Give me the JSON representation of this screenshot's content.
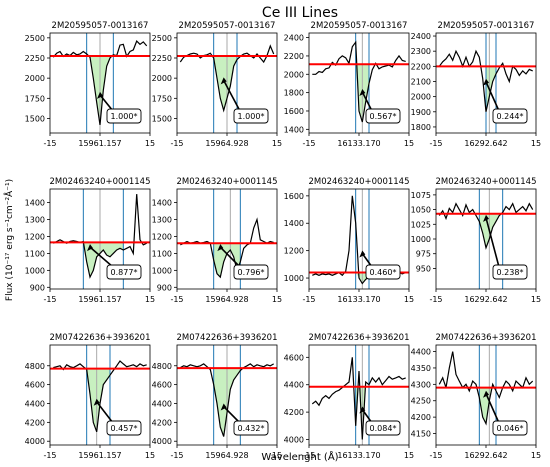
{
  "figure": {
    "title": "Ce III Lines",
    "xlabel": "Wavelenght (Å)",
    "ylabel": "Flux (10⁻¹⁷ erg s⁻¹cm⁻²Å⁻¹)"
  },
  "colors": {
    "spectrum": "#000000",
    "continuum": "#ff0000",
    "fill": "#c8f0c0",
    "blue_lines": "#1f77b4",
    "center_line": "#aaaaaa"
  },
  "chart_data": [
    {
      "type": "line",
      "title": "2M20595057-0013167",
      "xticklabels": [
        "-15",
        "15961.157",
        "15"
      ],
      "xlim": [
        -15,
        15
      ],
      "ylim": [
        1320,
        2560
      ],
      "yticks": [
        1500,
        1750,
        2000,
        2250,
        2500
      ],
      "continuum": 2275,
      "blue_lines": [
        -4,
        4
      ],
      "center": 0,
      "label": "1.000*",
      "x": [
        -14,
        -13,
        -12,
        -11,
        -10,
        -9,
        -8,
        -7,
        -6,
        -5,
        -4,
        -3,
        -2,
        -1,
        0,
        1,
        2,
        3,
        4,
        5,
        6,
        7,
        8,
        9,
        10,
        11,
        12,
        13,
        14
      ],
      "y": [
        2260,
        2310,
        2330,
        2270,
        2300,
        2280,
        2320,
        2290,
        2300,
        2330,
        2300,
        2260,
        2000,
        1700,
        1420,
        1850,
        2150,
        2250,
        2290,
        2280,
        2410,
        2420,
        2270,
        2330,
        2350,
        2460,
        2420,
        2450,
        2400
      ]
    },
    {
      "type": "line",
      "title": "2M20595057-0013167",
      "xticklabels": [
        "-15",
        "15964.928",
        "15"
      ],
      "xlim": [
        -15,
        15
      ],
      "ylim": [
        1320,
        2560
      ],
      "yticks": [
        1500,
        1750,
        2000,
        2250,
        2500
      ],
      "continuum": 2275,
      "blue_lines": [
        -4,
        3
      ],
      "center": 0,
      "label": "1.000*",
      "x": [
        -14,
        -13,
        -12,
        -11,
        -10,
        -9,
        -8,
        -7,
        -6,
        -5,
        -4,
        -3,
        -2,
        -1,
        0,
        1,
        2,
        3,
        4,
        5,
        6,
        7,
        8,
        9,
        10,
        11,
        12,
        13,
        14
      ],
      "y": [
        2200,
        2260,
        2280,
        2300,
        2310,
        2300,
        2250,
        2280,
        2290,
        2310,
        2250,
        2000,
        1750,
        1600,
        1750,
        1900,
        2150,
        2230,
        2270,
        2300,
        2310,
        2280,
        2250,
        2300,
        2250,
        2200,
        2280,
        2400,
        2300
      ]
    },
    {
      "type": "line",
      "title": "2M20595057-0013167",
      "xticklabels": [
        "-15",
        "16133.170",
        "15"
      ],
      "xlim": [
        -15,
        15
      ],
      "ylim": [
        1360,
        2450
      ],
      "yticks": [
        1400,
        1600,
        1800,
        2000,
        2200,
        2400
      ],
      "continuum": 2110,
      "blue_lines": [
        -1,
        3
      ],
      "center": 1,
      "label": "0.567*",
      "x": [
        -14,
        -13,
        -12,
        -11,
        -10,
        -9,
        -8,
        -7,
        -6,
        -5,
        -4,
        -3,
        -2,
        -1,
        0,
        1,
        2,
        3,
        4,
        5,
        6,
        7,
        8,
        9,
        10,
        11,
        12,
        13,
        14
      ],
      "y": [
        2000,
        2000,
        2030,
        2020,
        2060,
        2070,
        2130,
        2100,
        2170,
        2200,
        2180,
        2120,
        2300,
        2350,
        1600,
        1480,
        1700,
        1900,
        2050,
        2120,
        2060,
        2080,
        2090,
        2100,
        2080,
        2150,
        2200,
        2150,
        2140
      ]
    },
    {
      "type": "line",
      "title": "2M20595057-0013167",
      "xticklabels": [
        "-15",
        "16292.642",
        "15"
      ],
      "xlim": [
        -15,
        15
      ],
      "ylim": [
        1760,
        2420
      ],
      "yticks": [
        1800,
        1900,
        2000,
        2100,
        2200,
        2300,
        2400
      ],
      "continuum": 2200,
      "blue_lines": [
        0,
        3
      ],
      "center": 1,
      "label": "0.244*",
      "x": [
        -14,
        -13,
        -12,
        -11,
        -10,
        -9,
        -8,
        -7,
        -6,
        -5,
        -4,
        -3,
        -2,
        -1,
        0,
        1,
        2,
        3,
        4,
        5,
        6,
        7,
        8,
        9,
        10,
        11,
        12,
        13,
        14
      ],
      "y": [
        2200,
        2230,
        2250,
        2280,
        2240,
        2300,
        2260,
        2200,
        2260,
        2200,
        2230,
        2300,
        2260,
        2120,
        1900,
        2000,
        2100,
        2150,
        2190,
        2220,
        2150,
        2100,
        2200,
        2180,
        2140,
        2170,
        2150,
        2180,
        2170
      ]
    },
    {
      "type": "line",
      "title": "2M02463240+0001145",
      "xticklabels": [
        "-15",
        "15961.157",
        "15"
      ],
      "xlim": [
        -15,
        15
      ],
      "ylim": [
        890,
        1480
      ],
      "yticks": [
        900,
        1000,
        1100,
        1200,
        1300,
        1400
      ],
      "continuum": 1165,
      "blue_lines": [
        -5,
        7
      ],
      "center": 0,
      "label": "0.877*",
      "x": [
        -14,
        -13,
        -12,
        -11,
        -10,
        -9,
        -8,
        -7,
        -6,
        -5,
        -4,
        -3,
        -2,
        -1,
        0,
        1,
        2,
        3,
        4,
        5,
        6,
        7,
        8,
        9,
        10,
        11,
        12,
        13,
        14
      ],
      "y": [
        1160,
        1170,
        1180,
        1170,
        1160,
        1170,
        1175,
        1170,
        1165,
        1170,
        1050,
        960,
        1000,
        1080,
        1100,
        1120,
        1090,
        1080,
        1100,
        1120,
        1130,
        1120,
        1130,
        1140,
        1100,
        1450,
        1180,
        1150,
        1160
      ]
    },
    {
      "type": "line",
      "title": "2M02463240+0001145",
      "xticklabels": [
        "-15",
        "15964.928",
        "15"
      ],
      "xlim": [
        -15,
        15
      ],
      "ylim": [
        890,
        1480
      ],
      "yticks": [
        900,
        1000,
        1100,
        1200,
        1300,
        1400
      ],
      "continuum": 1160,
      "blue_lines": [
        -4,
        4
      ],
      "center": 1,
      "label": "0.796*",
      "x": [
        -14,
        -13,
        -12,
        -11,
        -10,
        -9,
        -8,
        -7,
        -6,
        -5,
        -4,
        -3,
        -2,
        -1,
        0,
        1,
        2,
        3,
        4,
        5,
        6,
        7,
        8,
        9,
        10,
        11,
        12,
        13,
        14
      ],
      "y": [
        1150,
        1160,
        1170,
        1160,
        1165,
        1170,
        1160,
        1165,
        1170,
        1160,
        1060,
        980,
        960,
        1050,
        1100,
        1120,
        1080,
        1000,
        1050,
        1130,
        1150,
        1160,
        1250,
        1300,
        1180,
        1170,
        1160,
        1170,
        1165
      ]
    },
    {
      "type": "line",
      "title": "2M02463240+0001145",
      "xticklabels": [
        "-15",
        "16133.170",
        "15"
      ],
      "xlim": [
        -15,
        15
      ],
      "ylim": [
        920,
        1650
      ],
      "yticks": [
        1000,
        1200,
        1400,
        1600
      ],
      "continuum": 1040,
      "blue_lines": [
        -1,
        3
      ],
      "center": 1,
      "label": "0.460*",
      "x": [
        -14,
        -13,
        -12,
        -11,
        -10,
        -9,
        -8,
        -7,
        -6,
        -5,
        -4,
        -3,
        -2,
        -1,
        0,
        1,
        2,
        3,
        4,
        5,
        6,
        7,
        8,
        9,
        10,
        11,
        12,
        13,
        14
      ],
      "y": [
        1020,
        1030,
        1020,
        1030,
        1025,
        1030,
        1020,
        1030,
        1040,
        1020,
        1050,
        1200,
        1600,
        1400,
        1000,
        960,
        990,
        1010,
        1020,
        1030,
        1040,
        1030,
        1040,
        1030,
        1040,
        1035,
        1040,
        1030,
        1040
      ]
    },
    {
      "type": "line",
      "title": "2M02463240+0001145",
      "xticklabels": [
        "-15",
        "16292.642",
        "15"
      ],
      "xlim": [
        -15,
        15
      ],
      "ylim": [
        915,
        1085
      ],
      "yticks": [
        950,
        975,
        1000,
        1025,
        1050,
        1075
      ],
      "continuum": 1043,
      "blue_lines": [
        -2,
        5
      ],
      "center": 1,
      "label": "0.238*",
      "x": [
        -14,
        -13,
        -12,
        -11,
        -10,
        -9,
        -8,
        -7,
        -6,
        -5,
        -4,
        -3,
        -2,
        -1,
        0,
        1,
        2,
        3,
        4,
        5,
        6,
        7,
        8,
        9,
        10,
        11,
        12,
        13,
        14
      ],
      "y": [
        1040,
        1048,
        1035,
        1052,
        1045,
        1060,
        1050,
        1040,
        1058,
        1045,
        1050,
        1040,
        1030,
        1010,
        985,
        1000,
        1020,
        1030,
        1040,
        1045,
        1055,
        1050,
        1060,
        1045,
        1050,
        1055,
        1048,
        1060,
        1050
      ]
    },
    {
      "type": "line",
      "title": "2M07422636+3936201",
      "xticklabels": [
        "-15",
        "15961.157",
        "15"
      ],
      "xlim": [
        -15,
        15
      ],
      "ylim": [
        3960,
        5020
      ],
      "yticks": [
        4000,
        4200,
        4400,
        4600,
        4800
      ],
      "continuum": 4770,
      "blue_lines": [
        -4,
        3
      ],
      "center": -1,
      "label": "0.457*",
      "x": [
        -14,
        -13,
        -12,
        -11,
        -10,
        -9,
        -8,
        -7,
        -6,
        -5,
        -4,
        -3,
        -2,
        -1,
        0,
        1,
        2,
        3,
        4,
        5,
        6,
        7,
        8,
        9,
        10,
        11,
        12,
        13,
        14
      ],
      "y": [
        4780,
        4790,
        4800,
        4760,
        4810,
        4790,
        4780,
        4800,
        4820,
        4790,
        4760,
        4500,
        4200,
        4100,
        4400,
        4600,
        4650,
        4700,
        4750,
        4800,
        4850,
        4820,
        4790,
        4800,
        4810,
        4790,
        4820,
        4800,
        4810
      ]
    },
    {
      "type": "line",
      "title": "2M07422636+3936201",
      "xticklabels": [
        "-15",
        "15964.928",
        "15"
      ],
      "xlim": [
        -15,
        15
      ],
      "ylim": [
        3960,
        5020
      ],
      "yticks": [
        4000,
        4200,
        4400,
        4600,
        4800
      ],
      "continuum": 4775,
      "blue_lines": [
        -4,
        4
      ],
      "center": 0,
      "label": "0.432*",
      "x": [
        -14,
        -13,
        -12,
        -11,
        -10,
        -9,
        -8,
        -7,
        -6,
        -5,
        -4,
        -3,
        -2,
        -1,
        0,
        1,
        2,
        3,
        4,
        5,
        6,
        7,
        8,
        9,
        10,
        11,
        12,
        13,
        14
      ],
      "y": [
        4780,
        4800,
        4790,
        4810,
        4800,
        4790,
        4800,
        4820,
        4790,
        4760,
        4600,
        4400,
        4150,
        4050,
        4300,
        4550,
        4650,
        4700,
        4750,
        4780,
        4800,
        4820,
        4790,
        4810,
        4800,
        4790,
        4810,
        4800,
        4820
      ]
    },
    {
      "type": "line",
      "title": "2M07422636+3936201",
      "xticklabels": [
        "-15",
        "16133.170",
        "15"
      ],
      "xlim": [
        -15,
        15
      ],
      "ylim": [
        3960,
        4690
      ],
      "yticks": [
        4000,
        4200,
        4400,
        4600
      ],
      "continuum": 4385,
      "blue_lines": [
        -1,
        3
      ],
      "center": 1,
      "label": "0.084*",
      "x": [
        -14,
        -13,
        -12,
        -11,
        -10,
        -9,
        -8,
        -7,
        -6,
        -5,
        -4,
        -3,
        -2,
        -1,
        0,
        1,
        2,
        3,
        4,
        5,
        6,
        7,
        8,
        9,
        10,
        11,
        12,
        13,
        14
      ],
      "y": [
        4260,
        4280,
        4250,
        4300,
        4320,
        4300,
        4330,
        4350,
        4360,
        4380,
        4400,
        4420,
        4600,
        4100,
        4500,
        4000,
        4420,
        4400,
        4450,
        4420,
        4450,
        4400,
        4430,
        4460,
        4440,
        4450,
        4460,
        4440,
        4450
      ]
    },
    {
      "type": "line",
      "title": "2M07422636+3936201",
      "xticklabels": [
        "-15",
        "16292.642",
        "15"
      ],
      "xlim": [
        -15,
        15
      ],
      "ylim": [
        4115,
        4420
      ],
      "yticks": [
        4150,
        4200,
        4250,
        4300,
        4350,
        4400
      ],
      "continuum": 4290,
      "blue_lines": [
        -2,
        3
      ],
      "center": 1,
      "label": "0.046*",
      "x": [
        -14,
        -13,
        -12,
        -11,
        -10,
        -9,
        -8,
        -7,
        -6,
        -5,
        -4,
        -3,
        -2,
        -1,
        0,
        1,
        2,
        3,
        4,
        5,
        6,
        7,
        8,
        9,
        10,
        11,
        12,
        13,
        14
      ],
      "y": [
        4300,
        4320,
        4290,
        4350,
        4400,
        4330,
        4310,
        4290,
        4300,
        4280,
        4310,
        4300,
        4260,
        4200,
        4180,
        4250,
        4300,
        4280,
        4260,
        4290,
        4310,
        4300,
        4280,
        4310,
        4300,
        4290,
        4320,
        4300,
        4310
      ]
    }
  ]
}
